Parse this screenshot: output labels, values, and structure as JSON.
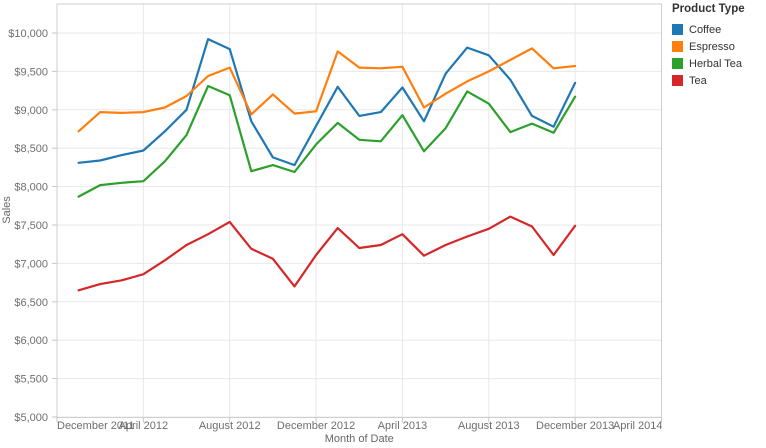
{
  "chart_data": {
    "type": "line",
    "x_axis_title": "Month of Date",
    "y_axis_title": "Sales",
    "x_tick_labels": [
      "December 2011",
      "April 2012",
      "August 2012",
      "December 2012",
      "April 2013",
      "August 2013",
      "December 2013",
      "April 2014"
    ],
    "x_tick_month_offsets": [
      0,
      4,
      8,
      12,
      16,
      20,
      24,
      28
    ],
    "x_total_months": 28,
    "x_axis_start": "2011-12",
    "x_axis_end": "2014-04",
    "grid": "both",
    "legend_position": "top-right",
    "y_min": 5000,
    "y_max": 10000,
    "y_ticks": [
      10000,
      9500,
      9000,
      8500,
      8000,
      7500,
      7000,
      6500,
      6000,
      5500,
      5000
    ],
    "y_tick_labels": [
      "$10,000",
      "$9,500",
      "$9,000",
      "$8,500",
      "$8,000",
      "$7,500",
      "$7,000",
      "$6,500",
      "$6,000",
      "$5,500",
      "$5,000"
    ],
    "months": [
      "2012-01",
      "2012-02",
      "2012-03",
      "2012-04",
      "2012-05",
      "2012-06",
      "2012-07",
      "2012-08",
      "2012-09",
      "2012-10",
      "2012-11",
      "2012-12",
      "2013-01",
      "2013-02",
      "2013-03",
      "2013-04",
      "2013-05",
      "2013-06",
      "2013-07",
      "2013-08",
      "2013-09",
      "2013-10",
      "2013-11",
      "2013-12"
    ],
    "data_start_month_offset": 1,
    "series": [
      {
        "name": "Coffee",
        "color": "#1f77b4",
        "values": [
          8310,
          8340,
          8410,
          8470,
          8720,
          9000,
          9920,
          9790,
          8850,
          8380,
          8280,
          8790,
          9300,
          8920,
          8970,
          9290,
          8850,
          9470,
          9810,
          9710,
          9390,
          8920,
          8780,
          9350
        ]
      },
      {
        "name": "Espresso",
        "color": "#ff7f0e",
        "values": [
          8720,
          8970,
          8960,
          8970,
          9030,
          9180,
          9440,
          9550,
          8940,
          9200,
          8950,
          8980,
          9760,
          9550,
          9540,
          9560,
          9030,
          9210,
          9370,
          9500,
          9650,
          9800,
          9540,
          9570
        ]
      },
      {
        "name": "Herbal Tea",
        "color": "#2ca02c",
        "values": [
          7870,
          8020,
          8050,
          8070,
          8330,
          8670,
          9310,
          9190,
          8200,
          8280,
          8190,
          8550,
          8830,
          8610,
          8590,
          8930,
          8460,
          8760,
          9240,
          9080,
          8710,
          8820,
          8700,
          9170
        ]
      },
      {
        "name": "Tea",
        "color": "#d62728",
        "values": [
          6650,
          6730,
          6780,
          6860,
          7040,
          7240,
          7380,
          7540,
          7190,
          7060,
          6700,
          7110,
          7460,
          7200,
          7240,
          7380,
          7100,
          7240,
          7350,
          7450,
          7610,
          7480,
          7110,
          7490
        ]
      }
    ]
  },
  "legend": {
    "title": "Product Type",
    "items": [
      {
        "label": "Coffee",
        "color": "#1f77b4"
      },
      {
        "label": "Espresso",
        "color": "#ff7f0e"
      },
      {
        "label": "Herbal Tea",
        "color": "#2ca02c"
      },
      {
        "label": "Tea",
        "color": "#d62728"
      }
    ]
  },
  "style": {
    "gridline_color": "#e8e8e8",
    "border_color": "#cfcfcf",
    "tick_color": "#c6c6c6"
  }
}
